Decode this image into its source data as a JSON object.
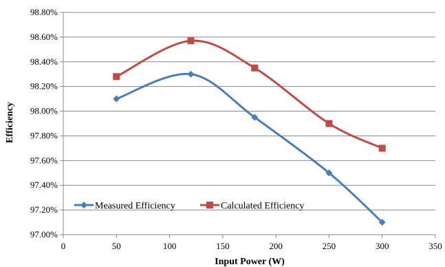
{
  "chart_data": {
    "type": "line",
    "xlabel": "Input Power (W)",
    "ylabel": "Efficiency",
    "xlim": [
      0,
      350
    ],
    "ylim": [
      97.0,
      98.8
    ],
    "x_ticks": [
      0,
      50,
      100,
      150,
      200,
      250,
      300,
      350
    ],
    "x_tick_labels": [
      "0",
      "50",
      "100",
      "150",
      "200",
      "250",
      "300",
      "350"
    ],
    "y_ticks": [
      97.0,
      97.2,
      97.4,
      97.6,
      97.8,
      98.0,
      98.2,
      98.4,
      98.6,
      98.8
    ],
    "y_tick_labels": [
      "97.00%",
      "97.20%",
      "97.40%",
      "97.60%",
      "97.80%",
      "98.00%",
      "98.20%",
      "98.40%",
      "98.60%",
      "98.80%"
    ],
    "grid": "horizontal",
    "legend_position": "bottom-left inside",
    "series": [
      {
        "name": "Measured Efficiency",
        "color": "#4a7ebb",
        "marker": "diamond",
        "x": [
          50,
          120,
          180,
          250,
          300
        ],
        "values": [
          98.1,
          98.3,
          97.95,
          97.5,
          97.1
        ]
      },
      {
        "name": "Calculated Efficiency",
        "color": "#be4b48",
        "marker": "square",
        "x": [
          50,
          120,
          180,
          250,
          300
        ],
        "values": [
          98.28,
          98.57,
          98.35,
          97.9,
          97.7
        ]
      }
    ]
  }
}
